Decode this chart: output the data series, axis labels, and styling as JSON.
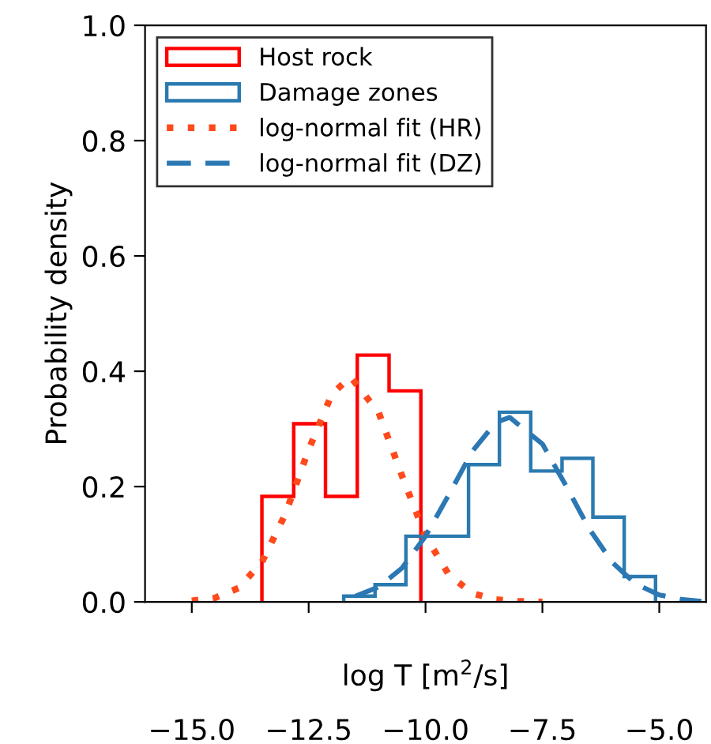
{
  "chart_data": {
    "type": "histogram",
    "xlabel": "log T [m$^{2}$/s]",
    "ylabel": "Probability density",
    "xlim": [
      -16,
      -4
    ],
    "ylim": [
      0,
      1.0
    ],
    "xticks": [
      {
        "value": -15,
        "label": "−15.0"
      },
      {
        "value": -12.5,
        "label": "−12.5"
      },
      {
        "value": -10,
        "label": "−10.0"
      },
      {
        "value": -7.5,
        "label": "−7.5"
      },
      {
        "value": -5,
        "label": "−5.0"
      }
    ],
    "yticks": [
      {
        "value": 0,
        "label": "0.0"
      },
      0.2,
      0.4,
      0.6,
      0.8,
      {
        "value": 1,
        "label": "1.0"
      }
    ],
    "grid": false,
    "legend": "top left",
    "series": [
      {
        "name": "Host rock",
        "color": "#ff0000",
        "bins": [
          -13.5,
          -12.82,
          -12.14,
          -11.46,
          -10.78,
          -10.1
        ],
        "values": [
          0.183,
          0.309,
          0.183,
          0.428,
          0.366
        ]
      },
      {
        "name": "Damage zones",
        "color": "#2a7ab0",
        "bins": [
          -11.75,
          -11.08,
          -10.42,
          -9.75,
          -9.08,
          -8.42,
          -7.75,
          -7.08,
          -6.42,
          -5.75,
          -5.08
        ],
        "values": [
          0.01,
          0.03,
          0.114,
          0.114,
          0.238,
          0.329,
          0.227,
          0.249,
          0.147,
          0.044
        ]
      },
      {
        "name": "log-normal fit (HR)",
        "type": "line",
        "line_style": "dotted",
        "color": "#ff4a1c",
        "x": [
          -15,
          -14.5,
          -14,
          -13.5,
          -13,
          -12.5,
          -12,
          -11.6,
          -11,
          -10.5,
          -10,
          -9.5,
          -9,
          -8.5,
          -8,
          -7.5
        ],
        "values": [
          0.002,
          0.007,
          0.024,
          0.069,
          0.152,
          0.264,
          0.361,
          0.39,
          0.328,
          0.218,
          0.114,
          0.047,
          0.015,
          0.004,
          0.001,
          0.0
        ]
      },
      {
        "name": "log-normal fit (DZ)",
        "type": "line",
        "line_style": "dashed",
        "color": "#2b78b4",
        "x": [
          -11.5,
          -11,
          -10.5,
          -10,
          -9.5,
          -9,
          -8.5,
          -8.2,
          -7.5,
          -7,
          -6.5,
          -6,
          -5.5,
          -5,
          -4.5,
          -4.1
        ],
        "values": [
          0.01,
          0.026,
          0.059,
          0.114,
          0.186,
          0.261,
          0.311,
          0.32,
          0.274,
          0.202,
          0.127,
          0.068,
          0.031,
          0.012,
          0.004,
          0.001
        ]
      }
    ]
  }
}
